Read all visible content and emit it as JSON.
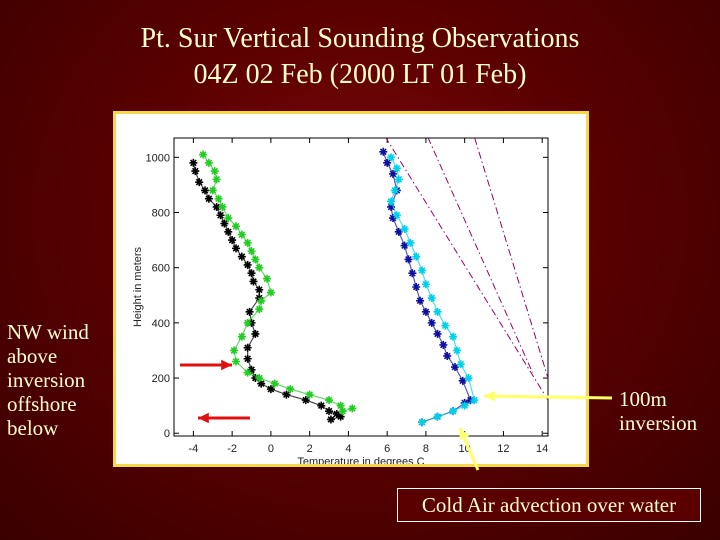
{
  "title_line1": "Pt. Sur Vertical Sounding Observations",
  "title_line2": "04Z 02 Feb (2000 LT 01 Feb)",
  "notes": {
    "left": "NW wind above inversion offshore below",
    "right": "100m inversion",
    "bottom": "Cold Air advection over water"
  },
  "colors": {
    "title": "#ffffcc",
    "frame": "#f2d94a",
    "arrow_red": "#e01010",
    "arrow_yellow": "#ffff66"
  },
  "chart_data": {
    "type": "scatter",
    "xlabel": "Temperature in degrees C",
    "ylabel": "Height in meters",
    "xlim": [
      -5,
      14.3
    ],
    "ylim": [
      -10,
      1070
    ],
    "xticks": [
      -4,
      -2,
      0,
      2,
      4,
      6,
      8,
      10,
      12,
      14
    ],
    "yticks": [
      0,
      200,
      400,
      600,
      800,
      1000
    ],
    "series": [
      {
        "color": "#000000",
        "marker": "star",
        "x": [
          -4.0,
          -3.9,
          -3.7,
          -3.4,
          -3.2,
          -2.8,
          -2.6,
          -2.4,
          -2.2,
          -2.0,
          -1.8,
          -1.5,
          -1.2,
          -1.0,
          -0.9,
          -0.6,
          -0.6,
          -1.1,
          -1.0,
          -0.8,
          -1.2,
          -1.2,
          -1.0,
          -0.8,
          -0.5,
          0.0,
          0.8,
          1.8,
          2.6,
          3.0,
          3.4,
          3.6,
          3.1
        ],
        "y": [
          980,
          950,
          910,
          880,
          850,
          820,
          790,
          760,
          730,
          700,
          670,
          640,
          610,
          580,
          550,
          520,
          490,
          440,
          400,
          360,
          310,
          270,
          230,
          200,
          180,
          160,
          140,
          120,
          100,
          80,
          70,
          60,
          50
        ]
      },
      {
        "color": "#22cc22",
        "marker": "star",
        "x": [
          -3.5,
          -3.2,
          -2.9,
          -2.8,
          -3.0,
          -2.7,
          -2.5,
          -2.2,
          -1.8,
          -1.5,
          -1.2,
          -1.0,
          -0.8,
          -0.6,
          -0.2,
          0.0,
          -0.5,
          -0.6,
          -1.2,
          -1.5,
          -1.9,
          -1.8,
          -1.2,
          -0.6,
          0.2,
          1.0,
          2.0,
          3.0,
          3.6,
          3.7,
          4.2
        ],
        "y": [
          1010,
          980,
          950,
          920,
          880,
          850,
          820,
          780,
          750,
          720,
          690,
          660,
          630,
          600,
          560,
          510,
          480,
          450,
          400,
          350,
          300,
          260,
          220,
          200,
          180,
          160,
          140,
          120,
          100,
          80,
          90
        ]
      },
      {
        "color": "#1010a0",
        "marker": "star",
        "x": [
          5.8,
          6.0,
          6.3,
          6.5,
          6.2,
          6.3,
          6.6,
          6.9,
          7.1,
          7.3,
          7.5,
          7.7,
          8.0,
          8.3,
          8.6,
          8.9,
          9.1,
          9.5,
          9.9,
          10.3,
          10.0,
          9.4,
          8.6,
          7.8
        ],
        "y": [
          1020,
          980,
          940,
          880,
          820,
          780,
          730,
          680,
          630,
          580,
          530,
          480,
          440,
          400,
          360,
          320,
          280,
          240,
          190,
          120,
          110,
          80,
          60,
          40
        ]
      },
      {
        "color": "#00d0e8",
        "marker": "star",
        "x": [
          6.2,
          6.5,
          6.6,
          6.4,
          6.2,
          6.5,
          6.9,
          7.2,
          7.5,
          7.8,
          8.0,
          8.3,
          8.6,
          9.0,
          9.4,
          9.6,
          9.8,
          10.2,
          10.5,
          10.0,
          9.4,
          8.6,
          7.8
        ],
        "y": [
          1000,
          960,
          920,
          880,
          840,
          790,
          740,
          690,
          640,
          590,
          540,
          490,
          440,
          390,
          350,
          300,
          250,
          200,
          120,
          100,
          80,
          60,
          40
        ]
      },
      {
        "color": "#990066",
        "marker": "line",
        "style": "dashed",
        "x": [
          5.5,
          14.3
        ],
        "y": [
          1120,
          120
        ]
      },
      {
        "color": "#990066",
        "marker": "line",
        "style": "dashed",
        "x": [
          7.8,
          13.5
        ],
        "y": [
          1120,
          220
        ]
      },
      {
        "color": "#990066",
        "marker": "line",
        "style": "dashed",
        "x": [
          10.3,
          14.3
        ],
        "y": [
          1120,
          200
        ]
      }
    ]
  }
}
